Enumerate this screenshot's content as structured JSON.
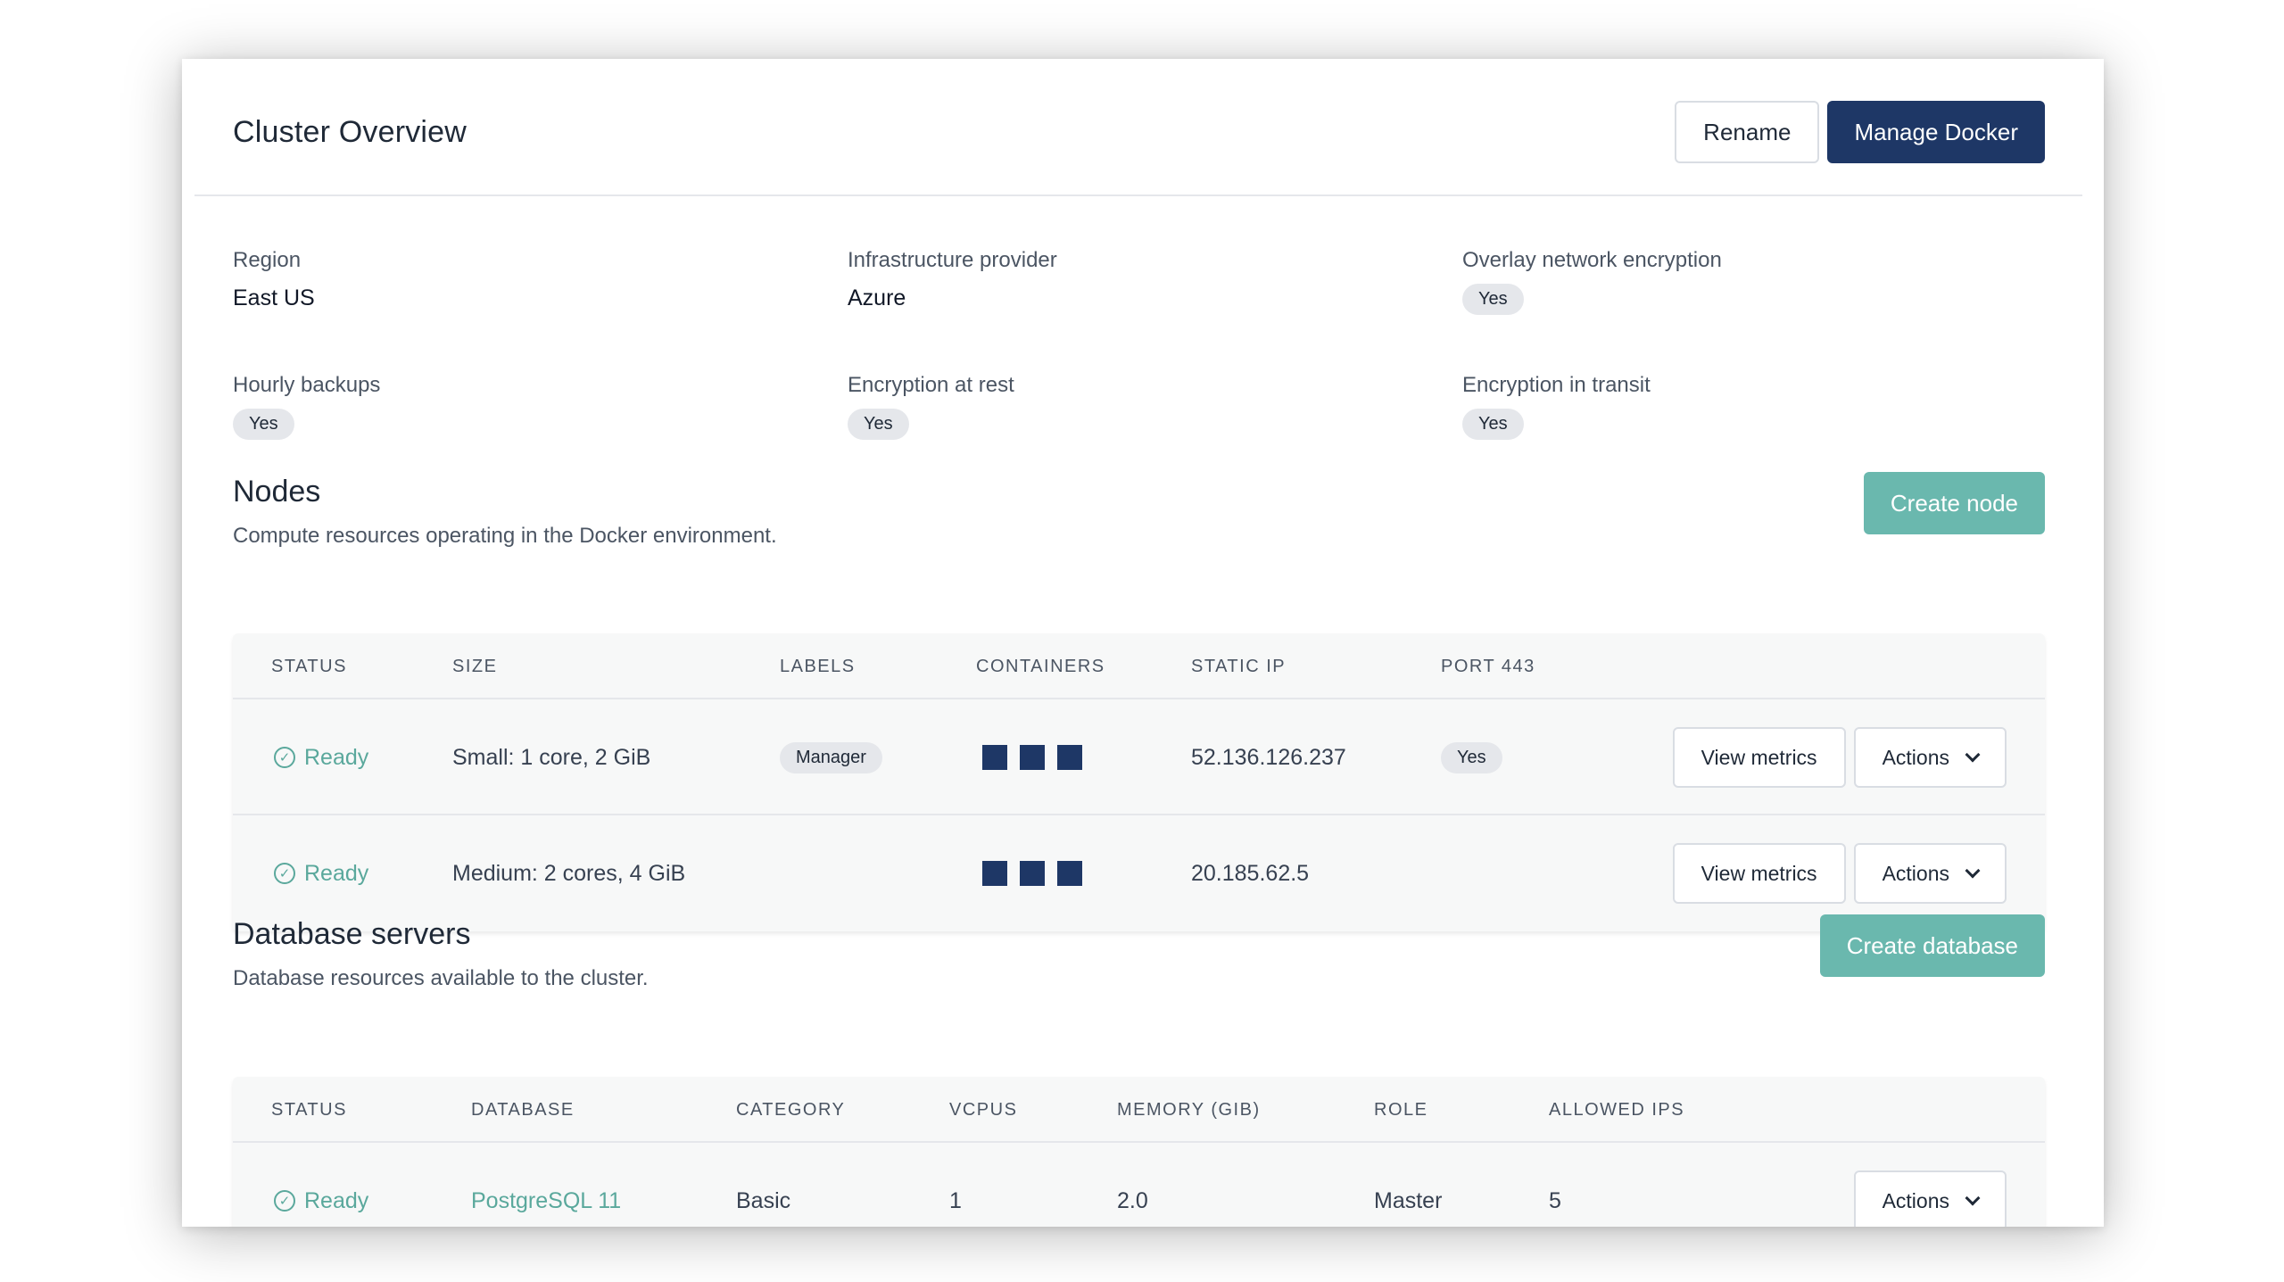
{
  "header": {
    "title": "Cluster Overview",
    "rename_label": "Rename",
    "manage_label": "Manage Docker"
  },
  "info": [
    {
      "label": "Region",
      "value": "East US",
      "type": "text"
    },
    {
      "label": "Infrastructure provider",
      "value": "Azure",
      "type": "text"
    },
    {
      "label": "Overlay network encryption",
      "value": "Yes",
      "type": "pill"
    },
    {
      "label": "Hourly backups",
      "value": "Yes",
      "type": "pill"
    },
    {
      "label": "Encryption at rest",
      "value": "Yes",
      "type": "pill"
    },
    {
      "label": "Encryption in transit",
      "value": "Yes",
      "type": "pill"
    }
  ],
  "nodes": {
    "title": "Nodes",
    "subtitle": "Compute resources operating in the Docker environment.",
    "create_label": "Create node",
    "columns": [
      "STATUS",
      "SIZE",
      "LABELS",
      "CONTAINERS",
      "STATIC IP",
      "PORT 443"
    ],
    "rows": [
      {
        "status": "Ready",
        "size": "Small: 1 core, 2 GiB",
        "label": "Manager",
        "containers": 3,
        "ip": "52.136.126.237",
        "port443": "Yes"
      },
      {
        "status": "Ready",
        "size": "Medium: 2 cores, 4 GiB",
        "label": "",
        "containers": 3,
        "ip": "20.185.62.5",
        "port443": ""
      }
    ],
    "view_metrics_label": "View metrics",
    "actions_label": "Actions"
  },
  "databases": {
    "title": "Database servers",
    "subtitle": "Database resources available to the cluster.",
    "create_label": "Create database",
    "columns": [
      "STATUS",
      "DATABASE",
      "CATEGORY",
      "VCPUS",
      "MEMORY (GIB)",
      "ROLE",
      "ALLOWED IPS"
    ],
    "rows": [
      {
        "status": "Ready",
        "database": "PostgreSQL 11",
        "category": "Basic",
        "vcpus": "1",
        "memory": "2.0",
        "role": "Master",
        "allowed_ips": "5"
      }
    ],
    "actions_label": "Actions"
  },
  "icons": {
    "status_ready": "check-circle-icon",
    "actions_caret": "chevron-down-icon"
  },
  "colors": {
    "primary": "#1e3766",
    "accent": "#6ab8ae",
    "status_ready": "#5aa89c"
  }
}
